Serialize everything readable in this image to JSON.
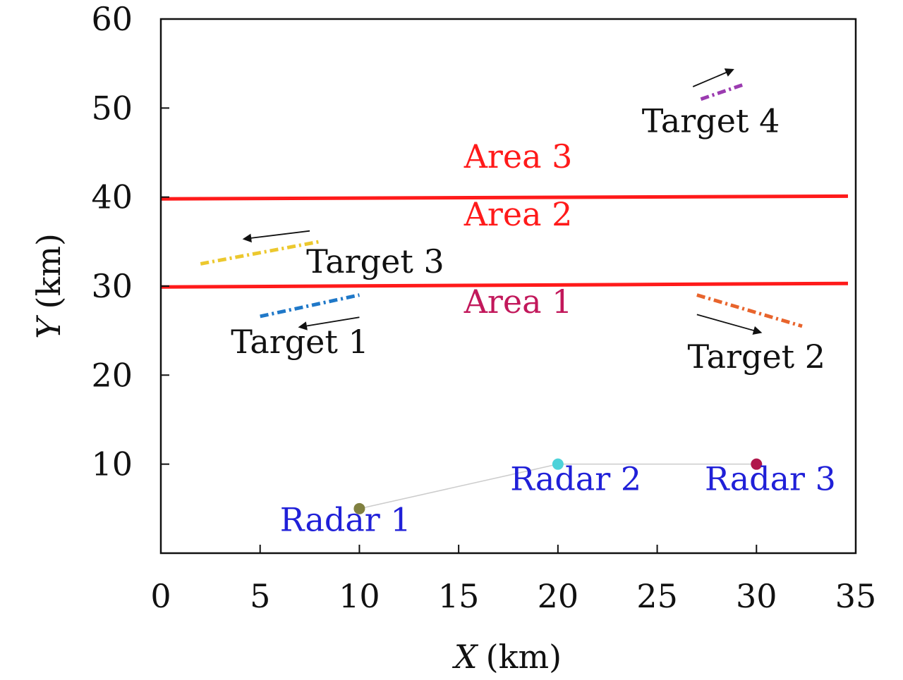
{
  "chart_data": {
    "type": "scatter",
    "xlabel_var": "X",
    "xlabel_unit": "(km)",
    "ylabel_var": "Y",
    "ylabel_unit": "(km)",
    "xlim": [
      0,
      35
    ],
    "ylim": [
      0,
      60
    ],
    "x_ticks": [
      "0",
      "5",
      "10",
      "15",
      "20",
      "25",
      "30",
      "35"
    ],
    "x_tick_values": [
      0,
      5,
      10,
      15,
      20,
      25,
      30,
      35
    ],
    "y_ticks": [
      "10",
      "20",
      "30",
      "40",
      "50",
      "60"
    ],
    "y_tick_values": [
      10,
      20,
      30,
      40,
      50,
      60
    ],
    "boundaries": [
      {
        "y_start": 29.9,
        "y_end": 30.3,
        "color": "#ff1a1a"
      },
      {
        "y_start": 39.8,
        "y_end": 40.1,
        "color": "#ff1a1a"
      }
    ],
    "areas": [
      {
        "label": "Area 1",
        "x": 18,
        "y": 27,
        "color": "#c2185b"
      },
      {
        "label": "Area 2",
        "x": 18,
        "y": 36.8,
        "color": "#ff1a1a"
      },
      {
        "label": "Area 3",
        "x": 18,
        "y": 43.3,
        "color": "#ff1a1a"
      }
    ],
    "radars": [
      {
        "label": "Radar 1",
        "x": 10,
        "y": 5,
        "color": "#808040",
        "label_x": 9.3,
        "label_y": 2.5
      },
      {
        "label": "Radar 2",
        "x": 20,
        "y": 10,
        "color": "#4dd2d9",
        "label_x": 20.9,
        "label_y": 7.1
      },
      {
        "label": "Radar 3",
        "x": 30,
        "y": 10,
        "color": "#b0174b",
        "label_x": 30.7,
        "label_y": 7.1
      }
    ],
    "radar_links": "#cccccc",
    "targets": [
      {
        "label": "Target 1",
        "label_x": 7,
        "label_y": 22.5,
        "color": "#1f78c8",
        "track": [
          [
            5,
            26.6
          ],
          [
            10,
            29
          ]
        ],
        "arrow": [
          [
            10,
            26.5
          ],
          [
            7,
            25.4
          ]
        ]
      },
      {
        "label": "Target 2",
        "label_x": 30,
        "label_y": 20.8,
        "color": "#e8642c",
        "track": [
          [
            27,
            29
          ],
          [
            32.3,
            25.5
          ]
        ],
        "arrow": [
          [
            27,
            26.8
          ],
          [
            30.2,
            24.8
          ]
        ]
      },
      {
        "label": "Target 3",
        "label_x": 10.8,
        "label_y": 31.5,
        "color": "#ecc82e",
        "track": [
          [
            2,
            32.5
          ],
          [
            8,
            35
          ]
        ],
        "arrow": [
          [
            7.5,
            36.2
          ],
          [
            4.2,
            35.3
          ]
        ]
      },
      {
        "label": "Target 4",
        "label_x": 27.7,
        "label_y": 47.3,
        "color": "#9b3bb0",
        "track": [
          [
            27.2,
            51
          ],
          [
            29.3,
            52.6
          ]
        ],
        "arrow": [
          [
            26.8,
            52.4
          ],
          [
            28.8,
            54.3
          ]
        ]
      }
    ]
  }
}
